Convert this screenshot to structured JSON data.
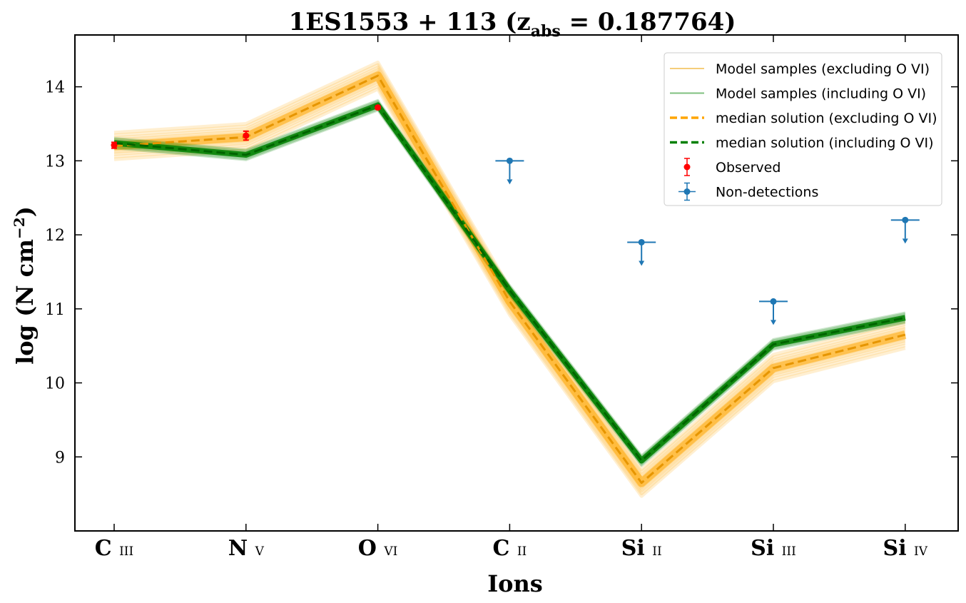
{
  "chart_data": {
    "type": "line",
    "title": "1ES1553 + 113 (z",
    "title_sub": "abs",
    "title_tail": " = 0.187764)",
    "xlabel": "Ions",
    "ylabel": "log (N cm",
    "ylabel_sup": "−2",
    "ylabel_tail": ")",
    "categories": [
      {
        "element": "C",
        "stage": "III"
      },
      {
        "element": "N",
        "stage": "V"
      },
      {
        "element": "O",
        "stage": "VI"
      },
      {
        "element": "C",
        "stage": "II"
      },
      {
        "element": "Si",
        "stage": "II"
      },
      {
        "element": "Si",
        "stage": "III"
      },
      {
        "element": "Si",
        "stage": "IV"
      }
    ],
    "yticks": [
      "9",
      "10",
      "11",
      "12",
      "13",
      "14"
    ],
    "ylim": [
      8.0,
      14.7
    ],
    "series": [
      {
        "name": "median solution (excluding O VI)",
        "color": "#ffa500",
        "values": [
          13.2,
          13.32,
          14.15,
          11.1,
          8.65,
          10.2,
          10.65
        ]
      },
      {
        "name": "median solution (including O VI)",
        "color": "#008000",
        "values": [
          13.24,
          13.08,
          13.75,
          11.25,
          8.95,
          10.52,
          10.88
        ]
      }
    ],
    "band_spread": {
      "orange": 0.18,
      "green": 0.07
    },
    "observed": [
      {
        "index": 0,
        "y": 13.21,
        "err": 0.04
      },
      {
        "index": 1,
        "y": 13.34,
        "err": 0.06
      },
      {
        "index": 2,
        "y": 13.72,
        "err": 0.02
      }
    ],
    "non_detections": [
      {
        "index": 3,
        "y": 13.0
      },
      {
        "index": 4,
        "y": 11.9
      },
      {
        "index": 5,
        "y": 11.1
      },
      {
        "index": 6,
        "y": 12.2
      }
    ],
    "legend": {
      "position": "top-right",
      "items": [
        {
          "label": "Model samples (excluding O VI)",
          "style": "thin-line",
          "color": "#f5cd7a"
        },
        {
          "label": "Model samples (including O VI)",
          "style": "thin-line",
          "color": "#7fc07f"
        },
        {
          "label": "median solution (excluding O VI)",
          "style": "dashed",
          "color": "#ffa500"
        },
        {
          "label": "median solution (including O VI)",
          "style": "dashed",
          "color": "#008000"
        },
        {
          "label": "Observed",
          "style": "errorbar-point",
          "color": "#ff0000"
        },
        {
          "label": "Non-detections",
          "style": "errorbar-point-xy",
          "color": "#1f77b4"
        }
      ]
    },
    "colors": {
      "observed": "#ff0000",
      "nondetection": "#1f77b4"
    },
    "grid": false
  }
}
